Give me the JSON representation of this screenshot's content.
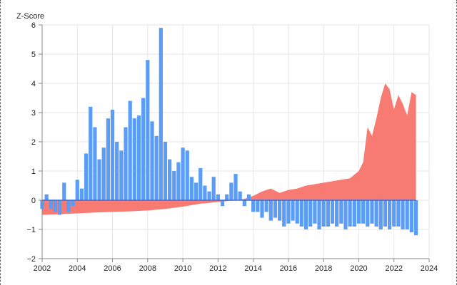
{
  "chart_data": {
    "type": "bar",
    "ylabel": "Z-Score",
    "xlabel": "",
    "xlim": [
      2002,
      2024
    ],
    "ylim": [
      -2,
      6
    ],
    "x_ticks": [
      "2002",
      "2004",
      "2006",
      "2008",
      "2010",
      "2012",
      "2014",
      "2016",
      "2018",
      "2020",
      "2022",
      "2024"
    ],
    "y_ticks": [
      "6",
      "5",
      "4",
      "3",
      "2",
      "1",
      "0",
      "−1",
      "−2"
    ],
    "grid": true,
    "colors": {
      "bars": "#5b9cf6",
      "area": "#f77b72",
      "zero_line": "#3f6fd8"
    },
    "bar_series": {
      "x": [
        2002.0,
        2002.25,
        2002.5,
        2002.75,
        2003.0,
        2003.25,
        2003.5,
        2003.75,
        2004.0,
        2004.25,
        2004.5,
        2004.75,
        2005.0,
        2005.25,
        2005.5,
        2005.75,
        2006.0,
        2006.25,
        2006.5,
        2006.75,
        2007.0,
        2007.25,
        2007.5,
        2007.75,
        2008.0,
        2008.25,
        2008.5,
        2008.75,
        2009.0,
        2009.25,
        2009.5,
        2009.75,
        2010.0,
        2010.25,
        2010.5,
        2010.75,
        2011.0,
        2011.25,
        2011.5,
        2011.75,
        2012.0,
        2012.25,
        2012.5,
        2012.75,
        2013.0,
        2013.25,
        2013.5,
        2013.75,
        2014.0,
        2014.25,
        2014.5,
        2014.75,
        2015.0,
        2015.25,
        2015.5,
        2015.75,
        2016.0,
        2016.25,
        2016.5,
        2016.75,
        2017.0,
        2017.25,
        2017.5,
        2017.75,
        2018.0,
        2018.25,
        2018.5,
        2018.75,
        2019.0,
        2019.25,
        2019.5,
        2019.75,
        2020.0,
        2020.25,
        2020.5,
        2020.75,
        2021.0,
        2021.25,
        2021.5,
        2021.75,
        2022.0,
        2022.25,
        2022.5,
        2022.75,
        2023.0,
        2023.25
      ],
      "values": [
        -0.3,
        0.2,
        -0.3,
        -0.4,
        -0.5,
        0.6,
        -0.4,
        -0.2,
        0.7,
        0.4,
        1.6,
        3.2,
        2.5,
        1.4,
        1.8,
        2.8,
        3.1,
        2.0,
        1.7,
        2.5,
        3.4,
        2.8,
        2.9,
        3.5,
        4.8,
        2.7,
        2.2,
        5.9,
        2.0,
        1.4,
        1.0,
        1.3,
        1.8,
        1.7,
        0.8,
        0.6,
        1.1,
        0.5,
        0.3,
        0.8,
        0.2,
        -0.2,
        0.2,
        0.6,
        0.9,
        0.3,
        -0.2,
        0.2,
        -0.4,
        -0.4,
        -0.6,
        -0.4,
        -0.7,
        -0.6,
        -0.7,
        -0.9,
        -0.8,
        -0.7,
        -0.8,
        -0.9,
        -1.0,
        -0.9,
        -0.8,
        -1.0,
        -0.9,
        -0.9,
        -0.8,
        -0.9,
        -0.8,
        -1.0,
        -0.9,
        -0.9,
        -0.8,
        -0.8,
        -0.9,
        -0.8,
        -0.9,
        -1.0,
        -0.9,
        -1.0,
        -0.9,
        -0.9,
        -1.0,
        -1.0,
        -1.1,
        -1.2
      ]
    },
    "area_series": {
      "x": [
        2002.0,
        2003.0,
        2004.0,
        2005.0,
        2006.0,
        2007.0,
        2008.0,
        2009.0,
        2010.0,
        2011.0,
        2012.0,
        2013.0,
        2013.5,
        2014.0,
        2014.5,
        2015.0,
        2015.5,
        2016.0,
        2016.5,
        2017.0,
        2017.5,
        2018.0,
        2018.5,
        2019.0,
        2019.5,
        2020.0,
        2020.25,
        2020.5,
        2020.75,
        2021.0,
        2021.25,
        2021.5,
        2021.75,
        2022.0,
        2022.25,
        2022.5,
        2022.75,
        2023.0,
        2023.25
      ],
      "values": [
        -0.5,
        -0.48,
        -0.45,
        -0.42,
        -0.4,
        -0.38,
        -0.35,
        -0.3,
        -0.22,
        -0.12,
        -0.06,
        0.0,
        0.05,
        0.15,
        0.3,
        0.4,
        0.25,
        0.35,
        0.4,
        0.5,
        0.55,
        0.6,
        0.65,
        0.7,
        0.75,
        1.0,
        1.3,
        2.5,
        2.2,
        2.8,
        3.5,
        4.0,
        3.8,
        3.1,
        3.6,
        3.3,
        2.9,
        3.7,
        3.6
      ]
    }
  }
}
